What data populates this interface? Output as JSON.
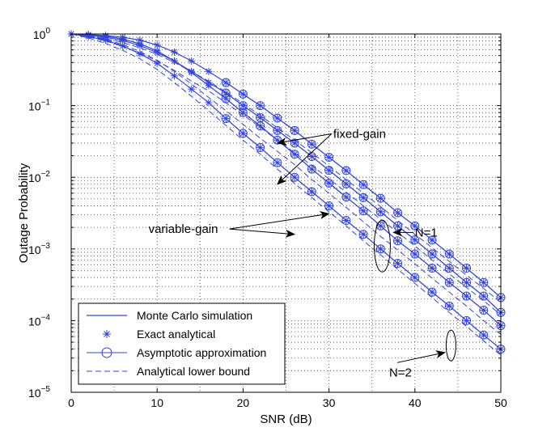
{
  "chart_data": {
    "type": "line",
    "title": "",
    "xlabel": "SNR (dB)",
    "ylabel": "Outage Probability",
    "xlim": [
      0,
      50
    ],
    "ylim": [
      1e-05,
      1
    ],
    "y_scale": "log",
    "grid": true,
    "legend_position": "bottom-left",
    "x_ticks": [
      "0",
      "10",
      "20",
      "30",
      "40",
      "50"
    ],
    "y_ticks": [
      {
        "base": "10",
        "exp": "0"
      },
      {
        "base": "10",
        "exp": "−1"
      },
      {
        "base": "10",
        "exp": "−2"
      },
      {
        "base": "10",
        "exp": "−3"
      },
      {
        "base": "10",
        "exp": "−4"
      },
      {
        "base": "10",
        "exp": "−5"
      }
    ],
    "x": [
      0,
      2,
      4,
      6,
      8,
      10,
      12,
      14,
      16,
      18,
      20,
      22,
      24,
      26,
      28,
      30,
      32,
      34,
      36,
      38,
      40,
      42,
      44,
      46,
      48,
      50
    ],
    "curves": [
      {
        "id": "c1",
        "values": [
          1.0,
          0.92,
          0.82,
          0.68,
          0.53,
          0.39,
          0.26,
          0.17,
          0.11,
          0.066,
          0.041,
          0.026,
          0.016,
          0.01,
          0.0063,
          0.004,
          0.0025,
          0.0016,
          0.001,
          0.00063,
          0.0004,
          0.00025,
          0.00016,
          0.0001,
          6.3e-05,
          4e-05
        ],
        "monte_carlo": [
          1.0,
          0.92,
          0.82,
          0.68,
          0.53,
          0.39,
          0.26,
          0.17,
          0.11,
          0.066,
          0.041,
          0.026,
          0.016,
          0.01,
          0.0063,
          0.004,
          0.0025,
          0.0016,
          0.001,
          0.00063,
          0.0004,
          0.00025,
          0.00016,
          0.0001,
          6.3e-05,
          4e-05
        ],
        "exact_analytical": [
          1.0,
          0.92,
          0.82,
          0.68,
          0.53,
          0.39,
          0.26,
          0.17,
          0.11,
          0.066,
          0.041,
          0.026,
          0.016,
          0.01,
          0.0063,
          0.004,
          0.0025,
          0.0016,
          0.001,
          0.00063,
          0.0004,
          0.00025,
          0.00016,
          0.0001,
          6.3e-05,
          4e-05
        ],
        "asymptotic_approximation": {
          "x": [
            18,
            20,
            22,
            24,
            26,
            28,
            30,
            32,
            34,
            36,
            38,
            40,
            42,
            44,
            46,
            48,
            50
          ],
          "values": [
            0.066,
            0.041,
            0.026,
            0.016,
            0.01,
            0.0063,
            0.004,
            0.0025,
            0.0016,
            0.001,
            0.00063,
            0.0004,
            0.00025,
            0.00016,
            0.0001,
            6.3e-05,
            4e-05
          ]
        },
        "analytical_lower_bound": [
          1.0,
          0.88,
          0.74,
          0.59,
          0.45,
          0.32,
          0.21,
          0.135,
          0.085,
          0.053,
          0.033,
          0.021,
          0.013,
          0.0082,
          0.0052,
          0.0033,
          0.0021,
          0.0013,
          0.00083,
          0.00052,
          0.00033,
          0.00021,
          0.00013,
          8.3e-05,
          5.2e-05,
          3.3e-05
        ]
      },
      {
        "id": "c2",
        "values": [
          1.0,
          0.97,
          0.93,
          0.85,
          0.73,
          0.58,
          0.42,
          0.29,
          0.19,
          0.125,
          0.08,
          0.052,
          0.033,
          0.021,
          0.013,
          0.0083,
          0.0053,
          0.0034,
          0.0021,
          0.0013,
          0.00085,
          0.00054,
          0.00034,
          0.00022,
          0.00014,
          8.5e-05
        ],
        "monte_carlo": [
          1.0,
          0.97,
          0.93,
          0.85,
          0.73,
          0.58,
          0.42,
          0.29,
          0.19,
          0.125,
          0.08,
          0.052,
          0.033,
          0.021,
          0.013,
          0.0083,
          0.0053,
          0.0034,
          0.0021,
          0.0013,
          0.00085,
          0.00054,
          0.00034,
          0.00022,
          0.00014,
          8.5e-05
        ],
        "exact_analytical": [
          1.0,
          0.97,
          0.93,
          0.85,
          0.73,
          0.58,
          0.42,
          0.29,
          0.19,
          0.125,
          0.08,
          0.052,
          0.033,
          0.021,
          0.013,
          0.0083,
          0.0053,
          0.0034,
          0.0021,
          0.0013,
          0.00085,
          0.00054,
          0.00034,
          0.00022,
          0.00014,
          8.5e-05
        ],
        "asymptotic_approximation": {
          "x": [
            18,
            20,
            22,
            24,
            26,
            28,
            30,
            32,
            34,
            36,
            38,
            40,
            42,
            44,
            46,
            48,
            50
          ],
          "values": [
            0.125,
            0.08,
            0.052,
            0.033,
            0.021,
            0.013,
            0.0083,
            0.0053,
            0.0034,
            0.0021,
            0.0013,
            0.00085,
            0.00054,
            0.00034,
            0.00022,
            0.00014,
            8.5e-05
          ]
        },
        "analytical_lower_bound": [
          1.0,
          0.93,
          0.84,
          0.71,
          0.57,
          0.43,
          0.3,
          0.2,
          0.13,
          0.085,
          0.055,
          0.035,
          0.023,
          0.015,
          0.0093,
          0.006,
          0.0038,
          0.0024,
          0.0015,
          0.00097,
          0.00062,
          0.00039,
          0.00025,
          0.00016,
          0.0001,
          6.4e-05
        ]
      },
      {
        "id": "c3",
        "values": [
          1.0,
          0.96,
          0.9,
          0.81,
          0.69,
          0.55,
          0.42,
          0.3,
          0.21,
          0.15,
          0.1,
          0.068,
          0.045,
          0.03,
          0.0195,
          0.0125,
          0.0081,
          0.0052,
          0.0033,
          0.0021,
          0.00134,
          0.00085,
          0.00054,
          0.00034,
          0.00022,
          0.00013
        ],
        "monte_carlo": [
          1.0,
          0.96,
          0.9,
          0.81,
          0.69,
          0.55,
          0.42,
          0.3,
          0.21,
          0.15,
          0.1,
          0.068,
          0.045,
          0.03,
          0.0195,
          0.0125,
          0.0081,
          0.0052,
          0.0033,
          0.0021,
          0.00134,
          0.00085,
          0.00054,
          0.00034,
          0.00022,
          0.00013
        ],
        "exact_analytical": [
          1.0,
          0.96,
          0.9,
          0.81,
          0.69,
          0.55,
          0.42,
          0.3,
          0.21,
          0.15,
          0.1,
          0.068,
          0.045,
          0.03,
          0.0195,
          0.0125,
          0.0081,
          0.0052,
          0.0033,
          0.0021,
          0.00134,
          0.00085,
          0.00054,
          0.00034,
          0.00022,
          0.00013
        ],
        "asymptotic_approximation": {
          "x": [
            18,
            20,
            22,
            24,
            26,
            28,
            30,
            32,
            34,
            36,
            38,
            40,
            42,
            44,
            46,
            48,
            50
          ],
          "values": [
            0.15,
            0.1,
            0.068,
            0.045,
            0.03,
            0.0195,
            0.0125,
            0.0081,
            0.0052,
            0.0033,
            0.0021,
            0.00134,
            0.00085,
            0.00054,
            0.00034,
            0.00022,
            0.00013
          ]
        },
        "analytical_lower_bound": [
          1.0,
          0.91,
          0.8,
          0.67,
          0.54,
          0.42,
          0.31,
          0.22,
          0.16,
          0.11,
          0.074,
          0.05,
          0.033,
          0.022,
          0.0146,
          0.0095,
          0.0062,
          0.004,
          0.0026,
          0.0017,
          0.0011,
          0.0007,
          0.00045,
          0.00029,
          0.00019,
          0.00012
        ]
      },
      {
        "id": "c4",
        "values": [
          1.0,
          0.98,
          0.95,
          0.9,
          0.82,
          0.7,
          0.56,
          0.42,
          0.3,
          0.21,
          0.145,
          0.1,
          0.067,
          0.045,
          0.029,
          0.019,
          0.0124,
          0.0079,
          0.0051,
          0.0032,
          0.0021,
          0.00133,
          0.00085,
          0.00054,
          0.00034,
          0.00021
        ],
        "monte_carlo": [
          1.0,
          0.98,
          0.95,
          0.9,
          0.82,
          0.7,
          0.56,
          0.42,
          0.3,
          0.21,
          0.145,
          0.1,
          0.067,
          0.045,
          0.029,
          0.019,
          0.0124,
          0.0079,
          0.0051,
          0.0032,
          0.0021,
          0.00133,
          0.00085,
          0.00054,
          0.00034,
          0.00021
        ],
        "exact_analytical": [
          1.0,
          0.98,
          0.95,
          0.9,
          0.82,
          0.7,
          0.56,
          0.42,
          0.3,
          0.21,
          0.145,
          0.1,
          0.067,
          0.045,
          0.029,
          0.019,
          0.0124,
          0.0079,
          0.0051,
          0.0032,
          0.0021,
          0.00133,
          0.00085,
          0.00054,
          0.00034,
          0.00021
        ],
        "asymptotic_approximation": {
          "x": [
            18,
            20,
            22,
            24,
            26,
            28,
            30,
            32,
            34,
            36,
            38,
            40,
            42,
            44,
            46,
            48,
            50
          ],
          "values": [
            0.21,
            0.145,
            0.1,
            0.067,
            0.045,
            0.029,
            0.019,
            0.0124,
            0.0079,
            0.0051,
            0.0032,
            0.0021,
            0.00133,
            0.00085,
            0.00054,
            0.00034,
            0.00021
          ]
        },
        "analytical_lower_bound": [
          1.0,
          0.94,
          0.86,
          0.76,
          0.64,
          0.52,
          0.4,
          0.3,
          0.22,
          0.155,
          0.107,
          0.073,
          0.049,
          0.033,
          0.022,
          0.0143,
          0.0093,
          0.006,
          0.0039,
          0.0025,
          0.0016,
          0.00104,
          0.00067,
          0.00043,
          0.00028,
          0.00018
        ]
      }
    ],
    "legend": [
      {
        "label": "Monte Carlo simulation",
        "style": "solid"
      },
      {
        "label": "Exact analytical",
        "style": "star"
      },
      {
        "label": "Asymptotic approximation",
        "style": "circle-line"
      },
      {
        "label": "Analytical lower bound",
        "style": "dashed"
      }
    ],
    "annotations": [
      {
        "text": "fixed-gain",
        "x": 30.5,
        "y": 0.0405,
        "arrows": [
          [
            24,
            0.03
          ],
          [
            24,
            0.008
          ]
        ]
      },
      {
        "text": "variable-gain",
        "x": 9,
        "y": 0.0019,
        "arrows": [
          [
            30,
            0.0031
          ],
          [
            26,
            0.0016
          ]
        ]
      },
      {
        "text": "N=1",
        "x": 40,
        "y": 0.0017,
        "ellipse": [
          36.2,
          0.0011
        ],
        "arrows": [
          [
            37.5,
            0.0017
          ]
        ]
      },
      {
        "text": "N=2",
        "x": 37,
        "y": 1.9e-05,
        "ellipse": [
          44.2,
          4.5e-05
        ],
        "arrows": [
          [
            43.5,
            3.6e-05
          ]
        ]
      }
    ],
    "colors": {
      "series": "#3344dd",
      "grid": "#444444",
      "axes": "#000000",
      "annotation": "#000000"
    }
  }
}
